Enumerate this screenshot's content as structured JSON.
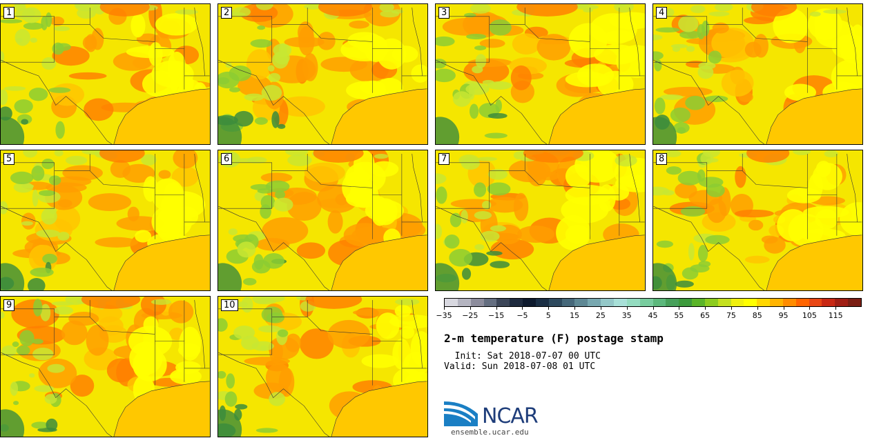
{
  "panels": [
    {
      "label": "1"
    },
    {
      "label": "2"
    },
    {
      "label": "3"
    },
    {
      "label": "4"
    },
    {
      "label": "5"
    },
    {
      "label": "6"
    },
    {
      "label": "7"
    },
    {
      "label": "8"
    },
    {
      "label": "9"
    },
    {
      "label": "10"
    }
  ],
  "colorbar": {
    "colors": [
      "#d8d8e0",
      "#b4b4c0",
      "#8c8c9c",
      "#646e80",
      "#3c4658",
      "#1e2a3e",
      "#0e1a2e",
      "#1a2e44",
      "#2e4a5e",
      "#46687a",
      "#5e8894",
      "#78a8b0",
      "#94c8c8",
      "#a8e0d8",
      "#94dcc0",
      "#78cc9e",
      "#5cb87c",
      "#46a05a",
      "#3c9a3c",
      "#5ab428",
      "#8ccc1e",
      "#c4e01e",
      "#f0f00e",
      "#ffff00",
      "#ffd700",
      "#ffb400",
      "#ff8c00",
      "#ff6400",
      "#e84614",
      "#c82814",
      "#a01e14",
      "#7a1e14"
    ],
    "range_min": -35,
    "range_max": 125,
    "tick_labels": [
      "-35",
      "-25",
      "-15",
      "-5",
      "5",
      "15",
      "25",
      "35",
      "45",
      "55",
      "65",
      "75",
      "85",
      "95",
      "105",
      "115"
    ]
  },
  "title": "2-m temperature (F) postage stamp",
  "init": "  Init: Sat 2018-07-07 00 UTC",
  "valid": "Valid: Sun 2018-07-08 01 UTC",
  "logo": {
    "text": "NCAR",
    "url": "ensemble.ucar.edu",
    "colors": {
      "primary": "#1e3d7a",
      "accent": "#1a7fc4"
    }
  },
  "map_colors": {
    "yellow": "#f5e600",
    "light_yellow": "#ffff00",
    "gold": "#ffc400",
    "orange": "#ff9d00",
    "dark_orange": "#ff8000",
    "yellowgreen": "#c8e632",
    "green": "#8ccc32",
    "darkgreen": "#3c8c3c",
    "gulf": "#ffc800"
  }
}
